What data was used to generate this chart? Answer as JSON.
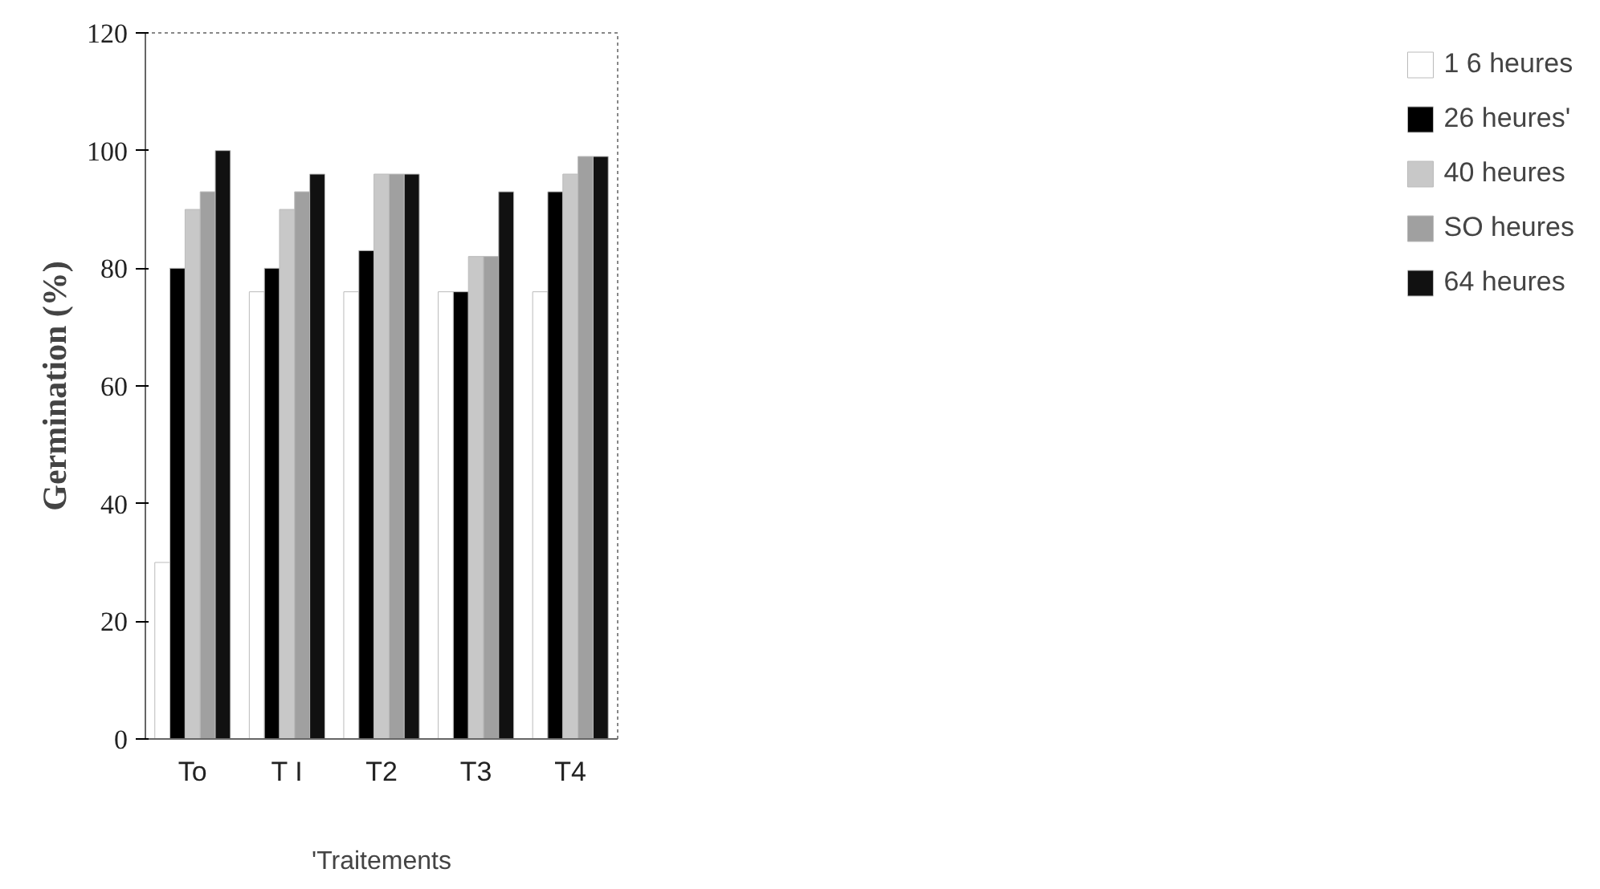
{
  "chart_data": {
    "type": "bar",
    "xlabel": "'Traitements",
    "ylabel": "Germination (%)",
    "categories": [
      "To",
      "T I",
      "T2",
      "T3",
      "T4"
    ],
    "series": [
      {
        "name": "1 6 heures",
        "color": "#ffffff",
        "values": [
          30,
          76,
          76,
          76,
          76
        ]
      },
      {
        "name": "26 heures'",
        "color": "#000000",
        "values": [
          80,
          80,
          83,
          76,
          93
        ]
      },
      {
        "name": "40 heures",
        "color": "#c8c8c8",
        "values": [
          90,
          90,
          96,
          82,
          96
        ]
      },
      {
        "name": "SO heures",
        "color": "#a0a0a0",
        "values": [
          93,
          93,
          96,
          82,
          99
        ]
      },
      {
        "name": "64 heures",
        "color": "#111111",
        "values": [
          100,
          96,
          96,
          93,
          99
        ]
      }
    ],
    "ylim": [
      0,
      120
    ],
    "yticks": [
      0,
      20,
      40,
      60,
      80,
      100,
      120
    ],
    "legend": "right"
  }
}
